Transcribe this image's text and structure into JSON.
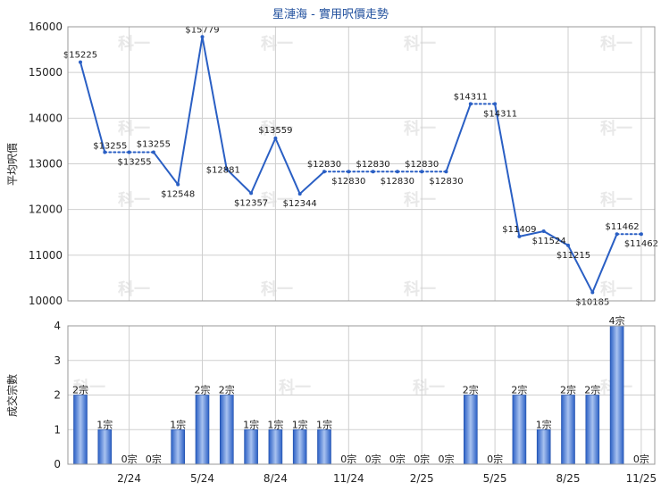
{
  "chart_data": [
    {
      "type": "line",
      "title": "星漣海 - 實用呎價走勢",
      "ylabel": "平均呎價",
      "ylim": [
        10000,
        16000
      ],
      "yticks": [
        10000,
        11000,
        12000,
        13000,
        14000,
        15000,
        16000
      ],
      "grid": true,
      "line_color": "#2a5fc4",
      "x": [
        "2023-12",
        "2024-01",
        "2024-02",
        "2024-03",
        "2024-04",
        "2024-05",
        "2024-06",
        "2024-07",
        "2024-08",
        "2024-09",
        "2024-10",
        "2024-11",
        "2024-12",
        "2025-01",
        "2025-02",
        "2025-03",
        "2025-04",
        "2025-05",
        "2025-06",
        "2025-07",
        "2025-08",
        "2025-09",
        "2025-10",
        "2025-11"
      ],
      "values": [
        15225,
        13255,
        13255,
        13255,
        12548,
        15779,
        12881,
        12357,
        13559,
        12344,
        12830,
        12830,
        12830,
        12830,
        12830,
        12830,
        14311,
        14311,
        11409,
        11524,
        11215,
        10185,
        11462,
        11462
      ],
      "dotted_after_index": [
        1,
        2,
        10,
        11,
        12,
        13,
        14,
        16,
        22
      ],
      "labels": [
        "$15225",
        "$13255",
        "$13255",
        "$13255",
        "$12548",
        "$15779",
        "$12881",
        "$12357",
        "$13559",
        "$12344",
        "$12830",
        "$12830",
        "$12830",
        "$12830",
        "$12830",
        "$12830",
        "$14311",
        "$14311",
        "$11409",
        "$11524",
        "$11215",
        "$10185",
        "$11462",
        "$11462"
      ]
    },
    {
      "type": "bar",
      "ylabel": "成交宗數",
      "ylim": [
        0,
        4
      ],
      "yticks": [
        0,
        1,
        2,
        3,
        4
      ],
      "xticks": [
        "2/24",
        "5/24",
        "8/24",
        "11/24",
        "2/25",
        "5/25",
        "8/25",
        "11/25"
      ],
      "bar_color": "#2a5fc4",
      "values": [
        2,
        1,
        0,
        0,
        1,
        2,
        2,
        1,
        1,
        1,
        1,
        0,
        0,
        0,
        0,
        0,
        2,
        0,
        2,
        1,
        2,
        2,
        4,
        0
      ],
      "labels": [
        "2宗",
        "1宗",
        "0宗",
        "0宗",
        "1宗",
        "2宗",
        "2宗",
        "1宗",
        "1宗",
        "1宗",
        "1宗",
        "0宗",
        "0宗",
        "0宗",
        "0宗",
        "0宗",
        "2宗",
        "0宗",
        "2宗",
        "1宗",
        "2宗",
        "2宗",
        "4宗",
        "0宗"
      ]
    }
  ],
  "watermark": "科一"
}
